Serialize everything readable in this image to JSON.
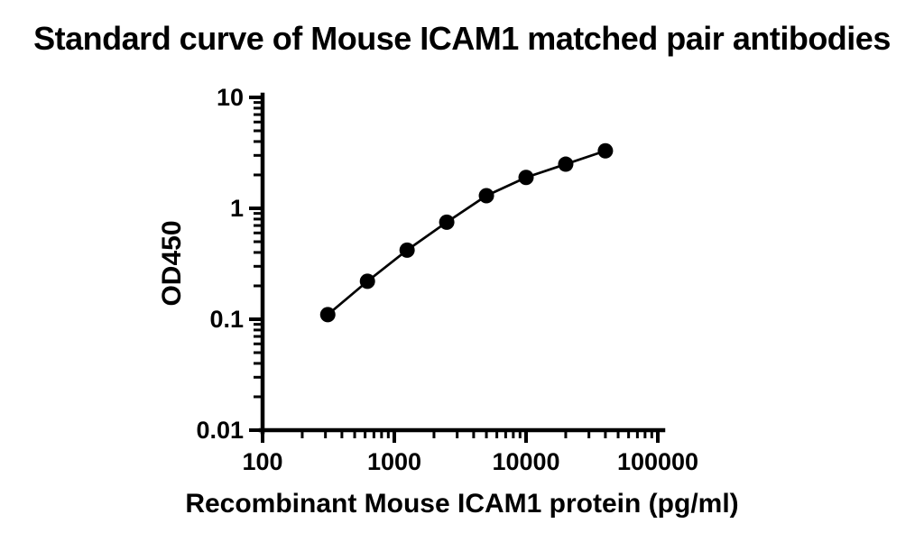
{
  "chart_data": {
    "type": "line",
    "title": "Standard curve of Mouse ICAM1 matched pair antibodies",
    "xlabel": "Recombinant Mouse ICAM1 protein (pg/ml)",
    "ylabel": "OD450",
    "x_scale": "log",
    "y_scale": "log",
    "xlim": [
      100,
      100000
    ],
    "ylim": [
      0.01,
      10
    ],
    "x_ticks": {
      "values": [
        100,
        1000,
        10000,
        100000
      ],
      "labels": [
        "100",
        "1000",
        "10000",
        "100000"
      ]
    },
    "y_ticks": {
      "values": [
        10,
        1,
        0.1,
        0.01
      ],
      "labels": [
        "10",
        "1",
        "0.1",
        "0.01"
      ]
    },
    "grid": false,
    "legend": "none",
    "marker": "filled-circle",
    "marker_radius": 8.5,
    "color": "#000000",
    "background": "#ffffff",
    "series": [
      {
        "x": [
          312.5,
          625,
          1250,
          2500,
          5000,
          10000,
          20000,
          40000
        ],
        "y": [
          0.11,
          0.22,
          0.42,
          0.75,
          1.3,
          1.9,
          2.5,
          3.3
        ]
      }
    ]
  }
}
